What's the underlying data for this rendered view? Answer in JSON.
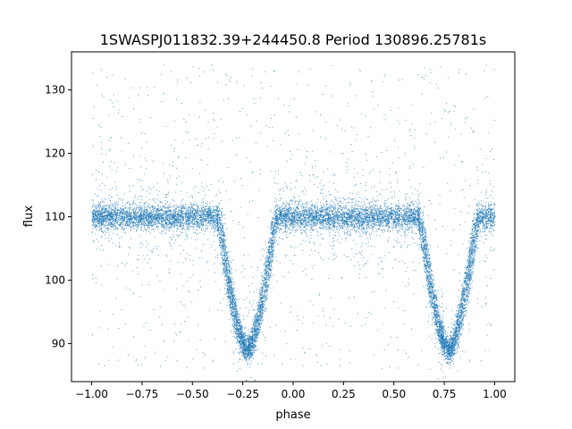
{
  "chart_data": {
    "type": "scatter",
    "title": "1SWASPJ011832.39+244450.8 Period 130896.25781s",
    "xlabel": "phase",
    "ylabel": "flux",
    "xlim": [
      -1.1,
      1.1
    ],
    "ylim": [
      84,
      136
    ],
    "x_ticks": [
      -1.0,
      -0.75,
      -0.5,
      -0.25,
      0.0,
      0.25,
      0.5,
      0.75,
      1.0
    ],
    "x_tick_labels": [
      "−1.00",
      "−0.75",
      "−0.50",
      "−0.25",
      "0.00",
      "0.25",
      "0.50",
      "0.75",
      "1.00"
    ],
    "y_ticks": [
      90,
      100,
      110,
      120,
      130
    ],
    "y_tick_labels": [
      "90",
      "100",
      "110",
      "120",
      "130"
    ],
    "grid": false,
    "marker_color": "#1f77b4",
    "series": [
      {
        "baseline_flux": 110.0,
        "baseline_scatter": 1.0,
        "eclipse_centers": [
          -0.23,
          0.77
        ],
        "eclipse_half_width": 0.14,
        "eclipse_min_flux": 89.0,
        "phase_range": [
          -1.0,
          1.0
        ],
        "outlier_range": [
          86,
          134
        ]
      }
    ]
  }
}
